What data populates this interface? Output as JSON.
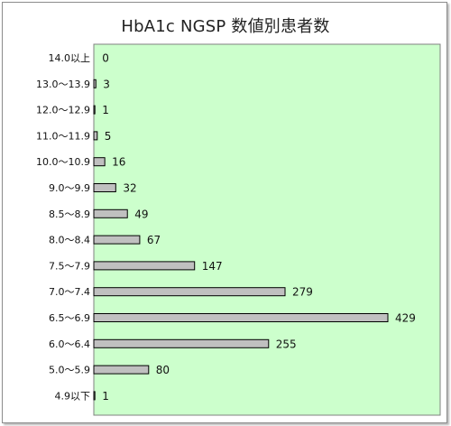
{
  "colors": {
    "plot_background": "#ccffcc",
    "bar_fill": "#c0c0c0",
    "bar_stroke": "#000000",
    "frame_border": "#8c8c8c"
  },
  "chart_data": {
    "type": "bar",
    "orientation": "horizontal",
    "title": "HbA1c NGSP 数値別患者数",
    "xlabel": "",
    "ylabel": "",
    "grid": false,
    "legend": "none",
    "xlim": [
      0,
      440
    ],
    "categories": [
      "14.0以上",
      "13.0～13.9",
      "12.0～12.9",
      "11.0～11.9",
      "10.0～10.9",
      "9.0～9.9",
      "8.5～8.9",
      "8.0～8.4",
      "7.5～7.9",
      "7.0～7.4",
      "6.5～6.9",
      "6.0～6.4",
      "5.0～5.9",
      "4.9以下"
    ],
    "values": [
      0,
      3,
      1,
      5,
      16,
      32,
      49,
      67,
      147,
      279,
      429,
      255,
      80,
      1
    ],
    "data_labels": [
      "0",
      "3",
      "1",
      "5",
      "16",
      "32",
      "49",
      "67",
      "147",
      "279",
      "429",
      "255",
      "80",
      "1"
    ]
  }
}
